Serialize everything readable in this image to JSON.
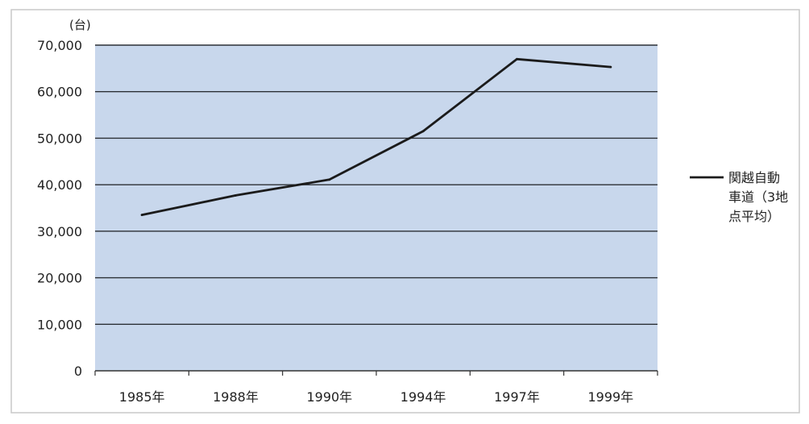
{
  "chart_data": {
    "type": "line",
    "unit_label": "(台)",
    "categories": [
      "1985年",
      "1988年",
      "1990年",
      "1994年",
      "1997年",
      "1999年"
    ],
    "series": [
      {
        "name": "関越自動車道（3地点平均）",
        "name_lines": [
          "関越自動",
          "車道（3地",
          "点平均）"
        ],
        "values": [
          33500,
          37700,
          41100,
          51500,
          67000,
          65300
        ]
      }
    ],
    "yticks": [
      "70,000",
      "60,000",
      "50,000",
      "40,000",
      "30,000",
      "20,000",
      "10,000",
      "0"
    ],
    "ylim": [
      0,
      70000
    ],
    "grid": true,
    "legend_position": "right",
    "colors": {
      "plot_bg": "#c8d7ec",
      "grid": "#2c3036",
      "line": "#1b1b1b",
      "frame": "#c9c9c9"
    }
  }
}
